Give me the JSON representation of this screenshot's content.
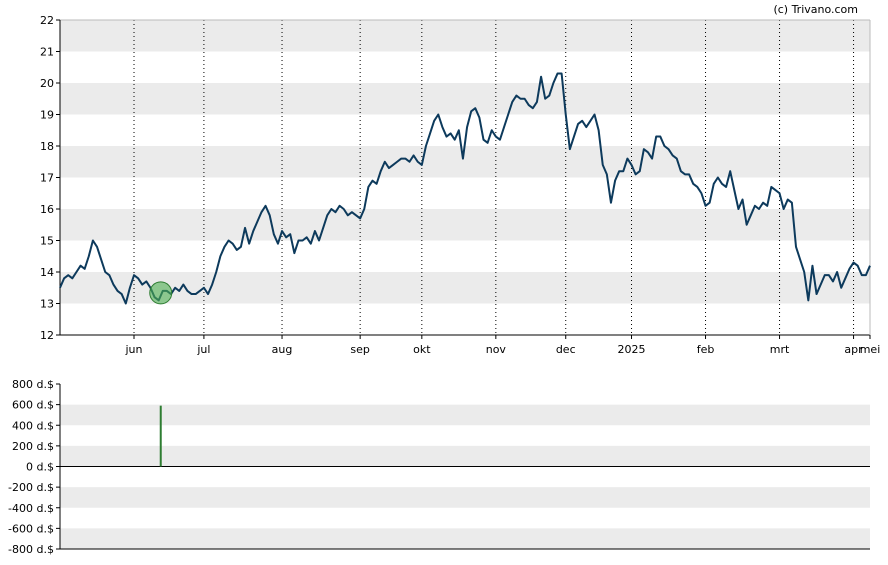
{
  "credit": "(c) Trivano.com",
  "colors": {
    "line": "#0d3a5c",
    "band": "#ebebeb",
    "marker": "#4caf50",
    "bar": "#2e7d32",
    "axis": "#000000"
  },
  "chart_data": [
    {
      "type": "line",
      "title": "",
      "xlabel": "",
      "ylabel": "",
      "ylim": [
        12,
        22
      ],
      "grid": true,
      "x_tick_labels": [
        "jun",
        "jul",
        "aug",
        "sep",
        "okt",
        "nov",
        "dec",
        "2025",
        "feb",
        "mrt",
        "apr",
        "mei"
      ],
      "y_tick_labels": [
        "12",
        "13",
        "14",
        "15",
        "16",
        "17",
        "18",
        "19",
        "20",
        "21",
        "22"
      ],
      "series": [
        {
          "values": [
            13.5,
            13.8,
            13.9,
            13.8,
            14.0,
            14.2,
            14.1,
            14.5,
            15.0,
            14.8,
            14.4,
            14.0,
            13.9,
            13.6,
            13.4,
            13.3,
            13.0,
            13.5,
            13.9,
            13.8,
            13.6,
            13.7,
            13.5,
            13.2,
            13.1,
            13.4,
            13.4,
            13.3,
            13.5,
            13.4,
            13.6,
            13.4,
            13.3,
            13.3,
            13.4,
            13.5,
            13.3,
            13.6,
            14.0,
            14.5,
            14.8,
            15.0,
            14.9,
            14.7,
            14.8,
            15.4,
            14.9,
            15.3,
            15.6,
            15.9,
            16.1,
            15.8,
            15.2,
            14.9,
            15.3,
            15.1,
            15.2,
            14.6,
            15.0,
            15.0,
            15.1,
            14.9,
            15.3,
            15.0,
            15.4,
            15.8,
            16.0,
            15.9,
            16.1,
            16.0,
            15.8,
            15.9,
            15.8,
            15.7,
            16.0,
            16.7,
            16.9,
            16.8,
            17.2,
            17.5,
            17.3,
            17.4,
            17.5,
            17.6,
            17.6,
            17.5,
            17.7,
            17.5,
            17.4,
            18.0,
            18.4,
            18.8,
            19.0,
            18.6,
            18.3,
            18.4,
            18.2,
            18.5,
            17.6,
            18.6,
            19.1,
            19.2,
            18.9,
            18.2,
            18.1,
            18.5,
            18.3,
            18.2,
            18.6,
            19.0,
            19.4,
            19.6,
            19.5,
            19.5,
            19.3,
            19.2,
            19.4,
            20.2,
            19.5,
            19.6,
            20.0,
            20.3,
            20.3,
            19.0,
            17.9,
            18.3,
            18.7,
            18.8,
            18.6,
            18.8,
            19.0,
            18.5,
            17.4,
            17.1,
            16.2,
            16.9,
            17.2,
            17.2,
            17.6,
            17.4,
            17.1,
            17.2,
            17.9,
            17.8,
            17.6,
            18.3,
            18.3,
            18.0,
            17.9,
            17.7,
            17.6,
            17.2,
            17.1,
            17.1,
            16.8,
            16.7,
            16.5,
            16.1,
            16.2,
            16.8,
            17.0,
            16.8,
            16.7,
            17.2,
            16.6,
            16.0,
            16.3,
            15.5,
            15.8,
            16.1,
            16.0,
            16.2,
            16.1,
            16.7,
            16.6,
            16.5,
            16.0,
            16.3,
            16.2,
            14.8,
            14.4,
            14.0,
            13.1,
            14.2,
            13.3,
            13.6,
            13.9,
            13.9,
            13.7,
            14.0,
            13.5,
            13.8,
            14.1,
            14.3,
            14.2,
            13.9,
            13.9,
            14.2
          ]
        }
      ]
    },
    {
      "type": "bar",
      "title": "",
      "xlabel": "",
      "ylabel": "",
      "ylim": [
        -800,
        800
      ],
      "grid": true,
      "y_tick_labels": [
        "800 d.$",
        "600 d.$",
        "400 d.$",
        "200 d.$",
        "0 d.$",
        "-200 d.$",
        "-400 d.$",
        "-600 d.$",
        "-800 d.$"
      ],
      "series": [
        {
          "values": [
            {
              "x": 24.5,
              "y": 590
            }
          ]
        }
      ]
    }
  ]
}
